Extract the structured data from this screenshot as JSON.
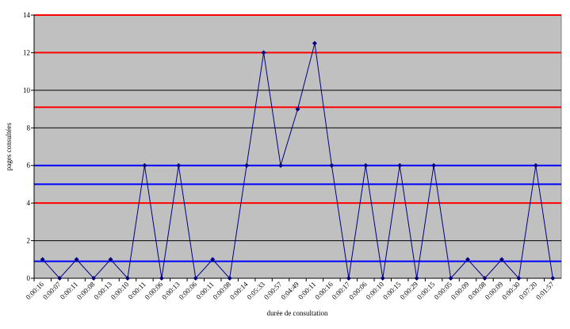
{
  "chart_data": {
    "type": "line",
    "x_label": "durée de consultation",
    "y_label": "pages consultées",
    "categories": [
      "0:00:16",
      "0:00:07",
      "0:00:11",
      "0:00:08",
      "0:00:13",
      "0:00:10",
      "0:00:11",
      "0:00:06",
      "0:00:13",
      "0:00:06",
      "0:00:11",
      "0:00:08",
      "0:00:14",
      "0:05:33",
      "0:00:57",
      "0:04:49",
      "0:00:11",
      "0:00:16",
      "0:00:17",
      "0:00:06",
      "0:00:10",
      "0:00:15",
      "0:00:29",
      "0:00:15",
      "0:00:05",
      "0:00:09",
      "0:00:08",
      "0:00:09",
      "0:00:30",
      "0:07:20",
      "0:01:57"
    ],
    "values": [
      1,
      0,
      1,
      0,
      1,
      0,
      6,
      0,
      6,
      0,
      1,
      0,
      6,
      12,
      6,
      9,
      12.5,
      6,
      0,
      6,
      0,
      6,
      0,
      6,
      0,
      1,
      0,
      1,
      0,
      6,
      0
    ],
    "color": "#000080",
    "ylim": [
      0,
      14
    ],
    "yticks": [
      0,
      2,
      4,
      6,
      8,
      10,
      12,
      14
    ],
    "grid": true,
    "plot_background": "#c0c0c0",
    "reference_lines": [
      {
        "value": 14,
        "color": "#ff0000"
      },
      {
        "value": 12,
        "color": "#ff0000"
      },
      {
        "value": 9.1,
        "color": "#ff0000"
      },
      {
        "value": 4,
        "color": "#ff0000"
      },
      {
        "value": 6,
        "color": "#0000ff"
      },
      {
        "value": 5,
        "color": "#0000ff"
      },
      {
        "value": 0.9,
        "color": "#0000ff"
      }
    ]
  }
}
